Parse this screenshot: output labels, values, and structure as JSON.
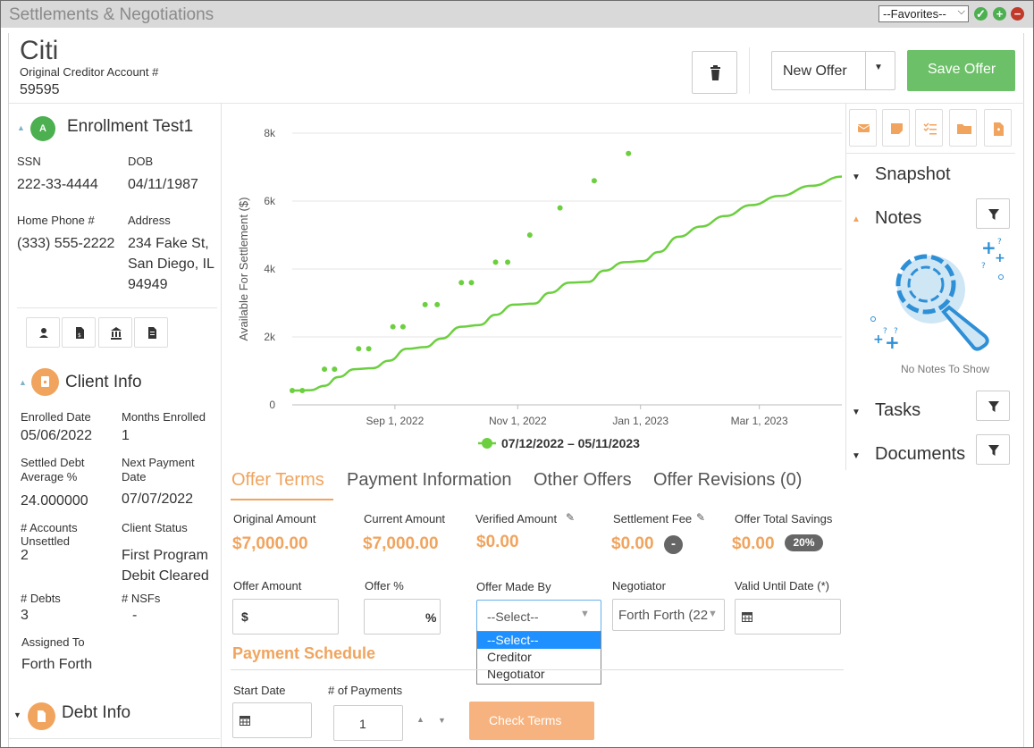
{
  "window": {
    "title": "Settlements & Negotiations",
    "favorites_value": "--Favorites--"
  },
  "header": {
    "creditor_name": "Citi",
    "account_label": "Original Creditor Account #",
    "account_number": "59595",
    "new_offer_label": "New Offer",
    "save_offer_label": "Save Offer"
  },
  "client": {
    "avatar_letter": "A",
    "name": "Enrollment Test1",
    "ssn_label": "SSN",
    "ssn": "222-33-4444",
    "dob_label": "DOB",
    "dob": "04/11/1987",
    "phone_label": "Home Phone #",
    "phone": "(333) 555-2222",
    "address_label": "Address",
    "address_line1": "234 Fake St,",
    "address_line2": "San Diego, IL",
    "address_line3": "94949"
  },
  "client_info": {
    "title": "Client Info",
    "enrolled_date_label": "Enrolled Date",
    "enrolled_date": "05/06/2022",
    "months_enrolled_label": "Months Enrolled",
    "months_enrolled": "1",
    "settled_debt_label_1": "Settled Debt",
    "settled_debt_label_2": "Average %",
    "settled_debt": "24.000000",
    "next_payment_label_1": "Next Payment",
    "next_payment_label_2": "Date",
    "next_payment": "07/07/2022",
    "accounts_unsettled_label_1": "# Accounts",
    "accounts_unsettled_label_2": "Unsettled",
    "accounts_unsettled": "2",
    "client_status_label": "Client Status",
    "client_status_1": "First Program",
    "client_status_2": "Debit Cleared",
    "debts_label": "# Debts",
    "debts": "3",
    "nsfs_label": "# NSFs",
    "nsfs": "-",
    "assigned_to_label": "Assigned To",
    "assigned_to": "Forth Forth"
  },
  "debt_info": {
    "title": "Debt Info"
  },
  "chart_data": {
    "type": "line",
    "ylabel": "Available For Settlement ($)",
    "yticks": [
      "0",
      "2k",
      "4k",
      "6k",
      "8k"
    ],
    "ylim": [
      0,
      8000
    ],
    "xticks": [
      {
        "label": "Sep 1, 2022",
        "day": 51
      },
      {
        "label": "Nov 1, 2022",
        "day": 112
      },
      {
        "label": "Jan 1, 2023",
        "day": 173
      },
      {
        "label": "Mar 1, 2023",
        "day": 232
      }
    ],
    "xlim_days": [
      0,
      273
    ],
    "legend": "07/12/2022 – 05/11/2023",
    "color": "#6ccf3f",
    "line_points": [
      [
        0,
        420
      ],
      [
        9,
        430
      ],
      [
        16,
        560
      ],
      [
        23,
        820
      ],
      [
        31,
        1050
      ],
      [
        40,
        1080
      ],
      [
        48,
        1300
      ],
      [
        57,
        1650
      ],
      [
        66,
        1700
      ],
      [
        74,
        1950
      ],
      [
        84,
        2300
      ],
      [
        93,
        2350
      ],
      [
        101,
        2650
      ],
      [
        110,
        2950
      ],
      [
        120,
        2980
      ],
      [
        128,
        3300
      ],
      [
        138,
        3600
      ],
      [
        147,
        3620
      ],
      [
        155,
        3950
      ],
      [
        165,
        4200
      ],
      [
        174,
        4230
      ],
      [
        182,
        4500
      ],
      [
        192,
        4950
      ],
      [
        203,
        5250
      ],
      [
        215,
        5560
      ],
      [
        228,
        5880
      ],
      [
        242,
        6150
      ],
      [
        258,
        6450
      ],
      [
        273,
        6720
      ]
    ],
    "scatter_points": [
      [
        0,
        420
      ],
      [
        5,
        420
      ],
      [
        16,
        1050
      ],
      [
        21,
        1050
      ],
      [
        33,
        1650
      ],
      [
        38,
        1650
      ],
      [
        50,
        2300
      ],
      [
        55,
        2300
      ],
      [
        66,
        2950
      ],
      [
        72,
        2950
      ],
      [
        84,
        3600
      ],
      [
        89,
        3600
      ],
      [
        101,
        4200
      ],
      [
        107,
        4200
      ],
      [
        118,
        5000
      ],
      [
        133,
        5800
      ],
      [
        150,
        6600
      ],
      [
        167,
        7400
      ]
    ]
  },
  "tabs": [
    {
      "label": "Offer Terms"
    },
    {
      "label": "Payment Information"
    },
    {
      "label": "Other Offers"
    },
    {
      "label": "Offer Revisions (0)"
    }
  ],
  "offer": {
    "original_amount_label": "Original Amount",
    "original_amount": "$7,000.00",
    "current_amount_label": "Current Amount",
    "current_amount": "$7,000.00",
    "verified_amount_label": "Verified Amount",
    "verified_amount": "$0.00",
    "settlement_fee_label": "Settlement Fee",
    "settlement_fee": "$0.00",
    "fee_badge": "-",
    "total_savings_label": "Offer Total Savings",
    "total_savings": "$0.00",
    "savings_badge": "20%",
    "offer_amount_label": "Offer Amount",
    "offer_amount_prefix": "$",
    "offer_pct_label": "Offer %",
    "offer_pct_suffix": "%",
    "made_by_label": "Offer Made By",
    "made_by_value": "--Select--",
    "negotiator_label": "Negotiator",
    "negotiator_value": "Forth Forth (22",
    "valid_until_label": "Valid Until Date",
    "valid_until_required": "(*)",
    "made_by_options": [
      "--Select--",
      "Creditor",
      "Negotiator"
    ]
  },
  "payment_schedule": {
    "title": "Payment Schedule",
    "start_date_label": "Start Date",
    "num_payments_label": "# of Payments",
    "num_payments": "1",
    "check_terms_label": "Check Terms"
  },
  "right_panel": {
    "snapshot": "Snapshot",
    "notes": "Notes",
    "no_notes": "No Notes To Show",
    "tasks": "Tasks",
    "documents": "Documents"
  },
  "colors": {
    "accent_orange": "#f0a45e",
    "green": "#6cc067",
    "chart_green": "#6ccf3f",
    "selected_blue": "#1e90ff"
  }
}
